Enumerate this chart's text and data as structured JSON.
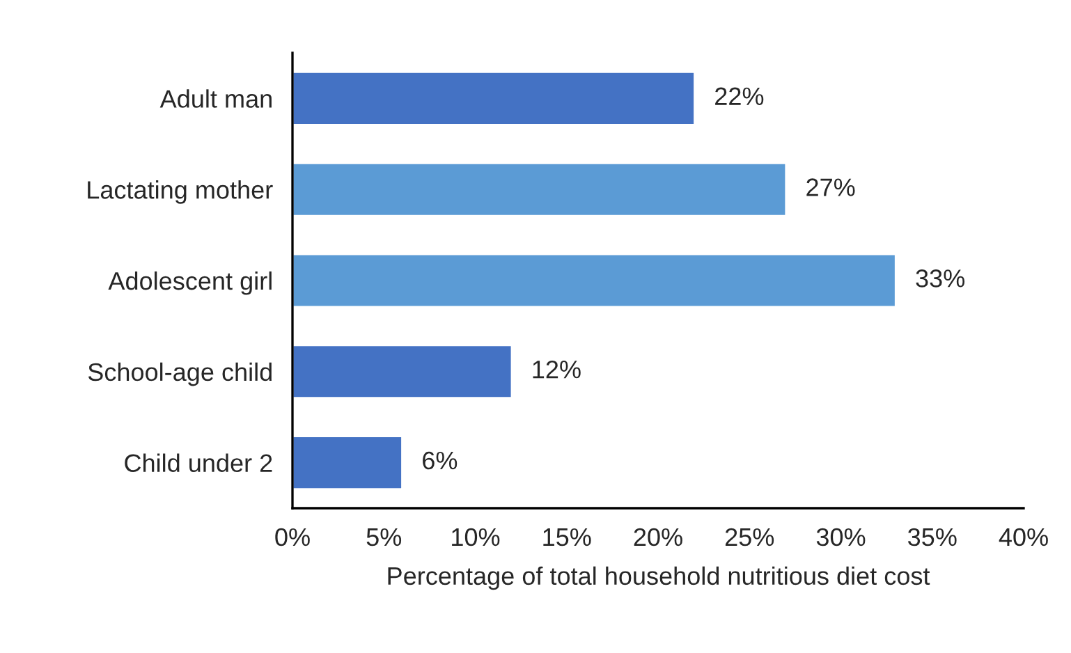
{
  "chart_data": {
    "type": "bar",
    "orientation": "horizontal",
    "xlabel": "Percentage of total household nutritious diet cost",
    "categories": [
      "Adult man",
      "Lactating mother",
      "Adolescent girl",
      "School-age child",
      "Child under 2"
    ],
    "values": [
      22,
      27,
      33,
      12,
      6
    ],
    "colors": [
      "#4472c4",
      "#5b9bd5",
      "#5b9bd5",
      "#4472c4",
      "#4472c4"
    ],
    "value_labels": [
      "22%",
      "27%",
      "33%",
      "12%",
      "6%"
    ],
    "xlim": [
      0,
      40
    ],
    "xticks": [
      {
        "value": 0,
        "label": "0%"
      },
      {
        "value": 5,
        "label": "5%"
      },
      {
        "value": 10,
        "label": "10%"
      },
      {
        "value": 15,
        "label": "15%"
      },
      {
        "value": 20,
        "label": "20%"
      },
      {
        "value": 25,
        "label": "25%"
      },
      {
        "value": 30,
        "label": "30%"
      },
      {
        "value": 35,
        "label": "35%"
      },
      {
        "value": 40,
        "label": "40%"
      }
    ],
    "grid": false
  }
}
